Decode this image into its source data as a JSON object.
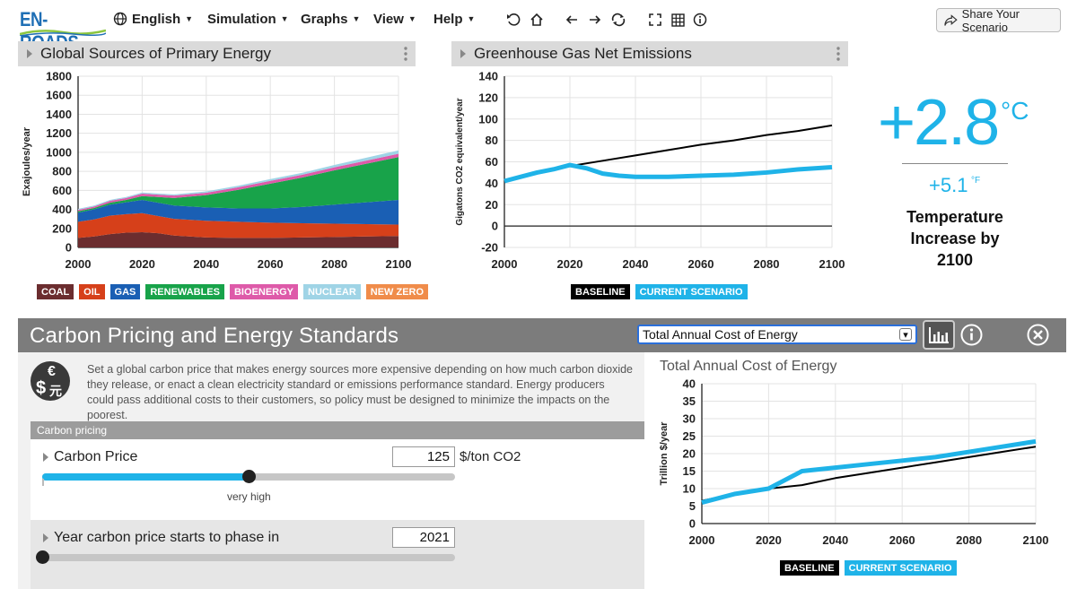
{
  "app": {
    "logo": "EN-ROADS"
  },
  "nav": {
    "language": "English",
    "simulation": "Simulation",
    "graphs": "Graphs",
    "view": "View",
    "help": "Help",
    "tools": [
      "undo-icon",
      "home-icon",
      "back-arrow-icon",
      "forward-arrow-icon",
      "cycle-icon",
      "fullscreen-icon",
      "table-icon",
      "info-icon"
    ],
    "share": "Share Your Scenario"
  },
  "energy_graph": {
    "title": "Global Sources of Primary Energy",
    "legend": [
      {
        "label": "COAL",
        "color": "#6b2d2f"
      },
      {
        "label": "OIL",
        "color": "#d6401a"
      },
      {
        "label": "GAS",
        "color": "#1a5fb4"
      },
      {
        "label": "RENEWABLES",
        "color": "#18a34a"
      },
      {
        "label": "BIOENERGY",
        "color": "#de5aa9"
      },
      {
        "label": "NUCLEAR",
        "color": "#9fd4e6"
      },
      {
        "label": "NEW ZERO",
        "color": "#f08c4a"
      }
    ]
  },
  "emissions_graph": {
    "title": "Greenhouse Gas Net Emissions",
    "legend": [
      {
        "label": "BASELINE",
        "color": "#000000"
      },
      {
        "label": "CURRENT SCENARIO",
        "color": "#1fb3e8"
      }
    ]
  },
  "temperature": {
    "value": "+2.8",
    "unit": "°C",
    "fahrenheit": "+5.1",
    "f_unit": "°F",
    "label_line1": "Temperature",
    "label_line2": "Increase by",
    "label_line3": "2100"
  },
  "policy": {
    "title": "Carbon Pricing and Energy Standards",
    "graph_select": "Total Annual Cost of Energy",
    "description": "Set a global carbon price that makes energy sources more expensive depending on how much carbon dioxide they release, or enact a clean electricity standard or emissions performance standard. Energy producers could pass additional costs to their customers, so policy must be designed to minimize the impacts on the poorest.",
    "icon_symbols": {
      "top": "€",
      "left": "$",
      "right": "元"
    },
    "section": "Carbon pricing",
    "carbon_price": {
      "label": "Carbon Price",
      "value": "125",
      "unit": "$/ton CO2",
      "level": "very high",
      "fill_fraction": 0.5
    },
    "phase_year": {
      "label": "Year carbon price starts to phase in",
      "value": "2021",
      "fill_fraction": 0.0
    }
  },
  "chart_data": [
    {
      "type": "area",
      "title": "Global Sources of Primary Energy",
      "ylabel": "Exajoules/year",
      "xlabel": "",
      "x": [
        2000,
        2005,
        2010,
        2015,
        2020,
        2025,
        2030,
        2040,
        2050,
        2060,
        2070,
        2080,
        2090,
        2100
      ],
      "xticks": [
        2000,
        2020,
        2040,
        2060,
        2080,
        2100
      ],
      "yticks": [
        0,
        200,
        400,
        600,
        800,
        1000,
        1200,
        1400,
        1600,
        1800
      ],
      "xlim": [
        2000,
        2100
      ],
      "ylim": [
        0,
        1800
      ],
      "stacked": true,
      "series": [
        {
          "name": "COAL",
          "values": [
            100,
            115,
            140,
            155,
            160,
            150,
            125,
            105,
            100,
            100,
            105,
            110,
            115,
            120
          ]
        },
        {
          "name": "OIL",
          "values": [
            170,
            180,
            195,
            195,
            200,
            180,
            175,
            175,
            170,
            160,
            150,
            140,
            130,
            120
          ]
        },
        {
          "name": "GAS",
          "values": [
            95,
            105,
            115,
            125,
            140,
            140,
            140,
            140,
            140,
            150,
            170,
            200,
            230,
            260
          ]
        },
        {
          "name": "RENEWABLES",
          "values": [
            15,
            15,
            20,
            25,
            40,
            60,
            80,
            130,
            195,
            260,
            310,
            360,
            405,
            450
          ]
        },
        {
          "name": "BIOENERGY",
          "values": [
            15,
            15,
            20,
            20,
            25,
            25,
            25,
            25,
            28,
            30,
            30,
            32,
            33,
            35
          ]
        },
        {
          "name": "NUCLEAR",
          "values": [
            10,
            10,
            10,
            10,
            12,
            12,
            12,
            14,
            16,
            18,
            20,
            25,
            30,
            35
          ]
        },
        {
          "name": "NEW ZERO",
          "values": [
            0,
            0,
            0,
            0,
            0,
            0,
            0,
            0,
            0,
            0,
            0,
            0,
            0,
            0
          ]
        }
      ]
    },
    {
      "type": "line",
      "title": "Greenhouse Gas Net Emissions",
      "ylabel": "Gigatons CO2 equivalent/year",
      "xlabel": "",
      "xticks": [
        2000,
        2020,
        2040,
        2060,
        2080,
        2100
      ],
      "yticks": [
        -20,
        0,
        20,
        40,
        60,
        80,
        100,
        120,
        140
      ],
      "xlim": [
        2000,
        2100
      ],
      "ylim": [
        -20,
        140
      ],
      "series": [
        {
          "name": "BASELINE",
          "x": [
            2000,
            2010,
            2020,
            2030,
            2040,
            2050,
            2060,
            2070,
            2080,
            2090,
            2100
          ],
          "values": [
            42,
            49,
            56,
            61,
            66,
            71,
            76,
            80,
            85,
            89,
            94
          ]
        },
        {
          "name": "CURRENT SCENARIO",
          "x": [
            2000,
            2005,
            2010,
            2015,
            2020,
            2025,
            2030,
            2035,
            2040,
            2050,
            2060,
            2070,
            2080,
            2090,
            2100
          ],
          "values": [
            42,
            46,
            50,
            53,
            57,
            54,
            49,
            47,
            46,
            46,
            47,
            48,
            50,
            53,
            55
          ]
        }
      ]
    },
    {
      "type": "line",
      "title": "Total Annual Cost of Energy",
      "ylabel": "Trillion $/year",
      "xlabel": "",
      "xticks": [
        2000,
        2020,
        2040,
        2060,
        2080,
        2100
      ],
      "yticks": [
        0,
        5,
        10,
        15,
        20,
        25,
        30,
        35,
        40
      ],
      "xlim": [
        2000,
        2100
      ],
      "ylim": [
        0,
        40
      ],
      "series": [
        {
          "name": "BASELINE",
          "x": [
            2000,
            2010,
            2020,
            2030,
            2040,
            2050,
            2060,
            2070,
            2080,
            2090,
            2100
          ],
          "values": [
            6.5,
            8.5,
            10,
            11,
            13,
            14.5,
            16,
            17.5,
            19,
            20.5,
            22
          ]
        },
        {
          "name": "CURRENT SCENARIO",
          "x": [
            2000,
            2010,
            2020,
            2030,
            2040,
            2050,
            2060,
            2070,
            2080,
            2090,
            2100
          ],
          "values": [
            6,
            8.5,
            10,
            15,
            16,
            17,
            18,
            19,
            20.5,
            22,
            23.5
          ]
        }
      ]
    }
  ]
}
